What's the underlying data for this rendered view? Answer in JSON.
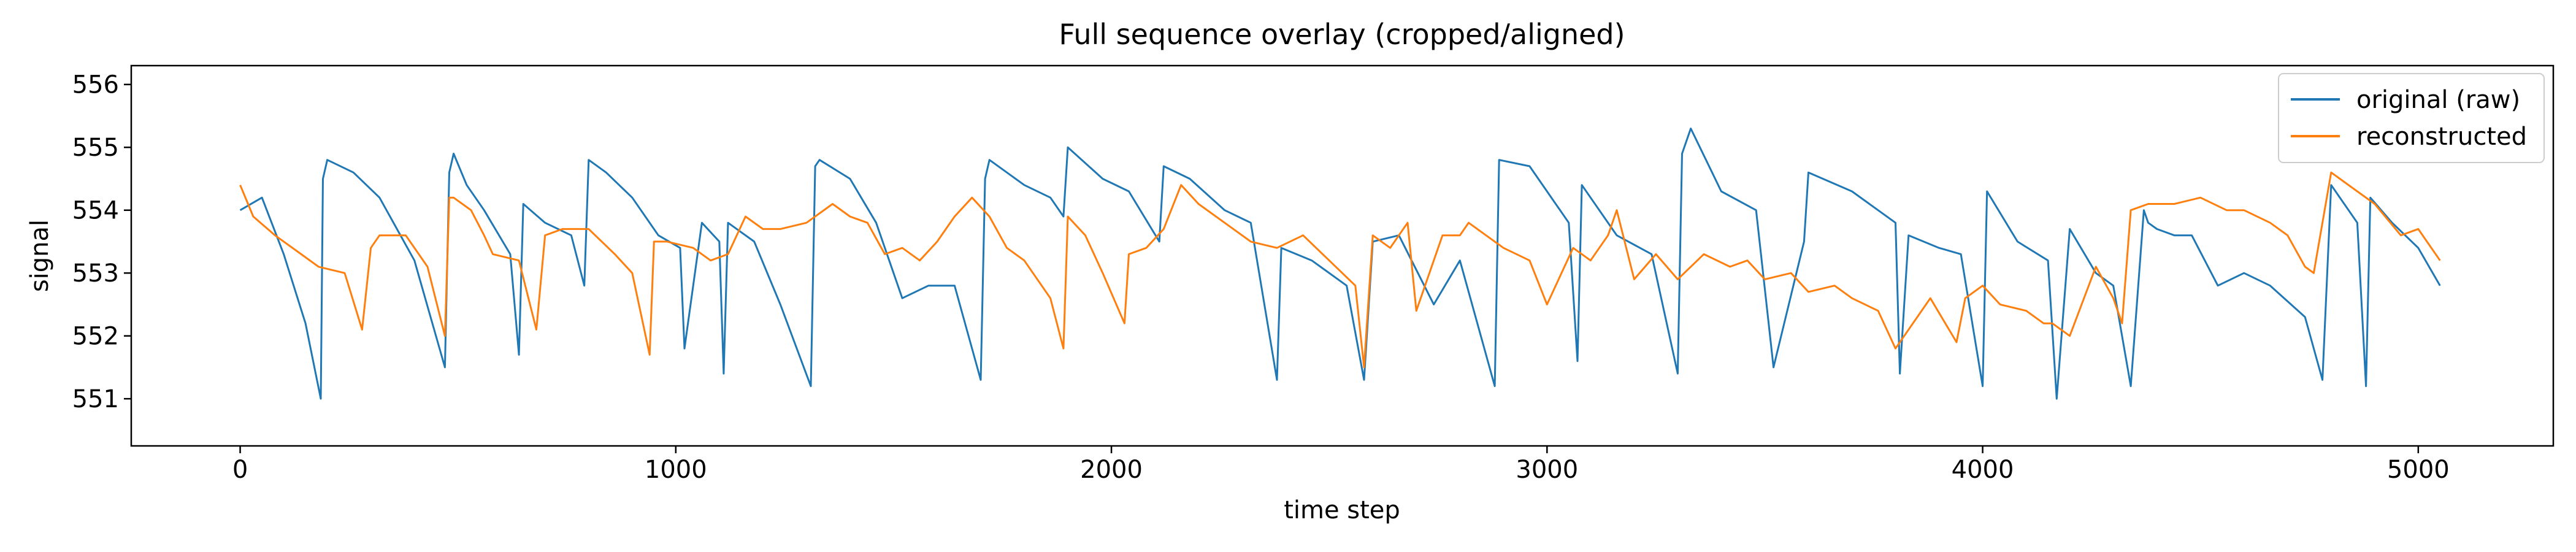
{
  "chart_data": {
    "type": "line",
    "title": "Full sequence overlay (cropped/aligned)",
    "xlabel": "time step",
    "ylabel": "signal",
    "xlim": [
      -250,
      5310
    ],
    "ylim": [
      550.25,
      556.3
    ],
    "xticks": [
      0,
      1000,
      2000,
      3000,
      4000,
      5000
    ],
    "yticks": [
      551,
      552,
      553,
      554,
      555,
      556
    ],
    "grid": false,
    "legend_position": "top-right",
    "series": [
      {
        "name": "original (raw)",
        "color": "#1f77b4",
        "x": [
          0,
          50,
          100,
          150,
          185,
          190,
          200,
          260,
          320,
          400,
          470,
          480,
          490,
          520,
          560,
          620,
          640,
          650,
          700,
          760,
          790,
          800,
          840,
          900,
          960,
          1010,
          1020,
          1060,
          1100,
          1110,
          1120,
          1180,
          1240,
          1310,
          1320,
          1330,
          1400,
          1460,
          1520,
          1580,
          1640,
          1700,
          1710,
          1720,
          1800,
          1860,
          1890,
          1900,
          1980,
          2040,
          2110,
          2120,
          2180,
          2260,
          2320,
          2380,
          2390,
          2460,
          2540,
          2580,
          2600,
          2660,
          2740,
          2800,
          2880,
          2890,
          2960,
          3050,
          3070,
          3080,
          3160,
          3240,
          3300,
          3310,
          3330,
          3400,
          3480,
          3520,
          3590,
          3600,
          3700,
          3800,
          3810,
          3830,
          3900,
          3950,
          4000,
          4010,
          4080,
          4150,
          4170,
          4200,
          4260,
          4300,
          4340,
          4370,
          4380,
          4400,
          4440,
          4480,
          4540,
          4600,
          4660,
          4740,
          4780,
          4800,
          4860,
          4880,
          4890,
          4940,
          5000,
          5050
        ],
        "y": [
          554.0,
          554.2,
          553.3,
          552.2,
          551.0,
          554.5,
          554.8,
          554.6,
          554.2,
          553.2,
          551.5,
          554.6,
          554.9,
          554.4,
          554.0,
          553.3,
          551.7,
          554.1,
          553.8,
          553.6,
          552.8,
          554.8,
          554.6,
          554.2,
          553.6,
          553.4,
          551.8,
          553.8,
          553.5,
          551.4,
          553.8,
          553.5,
          552.5,
          551.2,
          554.7,
          554.8,
          554.5,
          553.8,
          552.6,
          552.8,
          552.8,
          551.3,
          554.5,
          554.8,
          554.4,
          554.2,
          553.9,
          555.0,
          554.5,
          554.3,
          553.5,
          554.7,
          554.5,
          554.0,
          553.8,
          551.3,
          553.4,
          553.2,
          552.8,
          551.3,
          553.5,
          553.6,
          552.5,
          553.2,
          551.2,
          554.8,
          554.7,
          553.8,
          551.6,
          554.4,
          553.6,
          553.3,
          551.4,
          554.9,
          555.3,
          554.3,
          554.0,
          551.5,
          553.5,
          554.6,
          554.3,
          553.8,
          551.4,
          553.6,
          553.4,
          553.3,
          551.2,
          554.3,
          553.5,
          553.2,
          551.0,
          553.7,
          553.0,
          552.8,
          551.2,
          554.0,
          553.8,
          553.7,
          553.6,
          553.6,
          552.8,
          553.0,
          552.8,
          552.3,
          551.3,
          554.4,
          553.8,
          551.2,
          554.2,
          553.8,
          553.4,
          552.8
        ]
      },
      {
        "name": "reconstructed",
        "color": "#ff7f0e",
        "x": [
          0,
          30,
          80,
          140,
          180,
          240,
          280,
          300,
          320,
          380,
          430,
          470,
          480,
          490,
          530,
          560,
          580,
          640,
          680,
          700,
          740,
          800,
          860,
          900,
          940,
          950,
          980,
          1040,
          1080,
          1120,
          1160,
          1200,
          1240,
          1300,
          1360,
          1400,
          1440,
          1480,
          1520,
          1560,
          1600,
          1640,
          1680,
          1720,
          1760,
          1800,
          1860,
          1890,
          1900,
          1940,
          1980,
          2030,
          2040,
          2080,
          2120,
          2160,
          2200,
          2260,
          2320,
          2380,
          2440,
          2500,
          2560,
          2580,
          2600,
          2640,
          2680,
          2700,
          2760,
          2800,
          2820,
          2860,
          2900,
          2960,
          3000,
          3060,
          3100,
          3140,
          3160,
          3200,
          3250,
          3300,
          3360,
          3420,
          3460,
          3500,
          3560,
          3600,
          3660,
          3700,
          3760,
          3800,
          3840,
          3880,
          3940,
          3960,
          4000,
          4040,
          4100,
          4140,
          4160,
          4200,
          4260,
          4300,
          4320,
          4340,
          4380,
          4440,
          4500,
          4560,
          4600,
          4660,
          4700,
          4740,
          4760,
          4800,
          4860,
          4900,
          4960,
          5000,
          5050
        ],
        "y": [
          554.4,
          553.9,
          553.6,
          553.3,
          553.1,
          553.0,
          552.1,
          553.4,
          553.6,
          553.6,
          553.1,
          552.0,
          554.2,
          554.2,
          554.0,
          553.6,
          553.3,
          553.2,
          552.1,
          553.6,
          553.7,
          553.7,
          553.3,
          553.0,
          551.7,
          553.5,
          553.5,
          553.4,
          553.2,
          553.3,
          553.9,
          553.7,
          553.7,
          553.8,
          554.1,
          553.9,
          553.8,
          553.3,
          553.4,
          553.2,
          553.5,
          553.9,
          554.2,
          553.9,
          553.4,
          553.2,
          552.6,
          551.8,
          553.9,
          553.6,
          553.0,
          552.2,
          553.3,
          553.4,
          553.7,
          554.4,
          554.1,
          553.8,
          553.5,
          553.4,
          553.6,
          553.2,
          552.8,
          551.5,
          553.6,
          553.4,
          553.8,
          552.4,
          553.6,
          553.6,
          553.8,
          553.6,
          553.4,
          553.2,
          552.5,
          553.4,
          553.2,
          553.6,
          554.0,
          552.9,
          553.3,
          552.9,
          553.3,
          553.1,
          553.2,
          552.9,
          553.0,
          552.7,
          552.8,
          552.6,
          552.4,
          551.8,
          552.2,
          552.6,
          551.9,
          552.6,
          552.8,
          552.5,
          552.4,
          552.2,
          552.2,
          552.0,
          553.1,
          552.6,
          552.2,
          554.0,
          554.1,
          554.1,
          554.2,
          554.0,
          554.0,
          553.8,
          553.6,
          553.1,
          553.0,
          554.6,
          554.3,
          554.1,
          553.6,
          553.7,
          553.2
        ]
      }
    ]
  }
}
